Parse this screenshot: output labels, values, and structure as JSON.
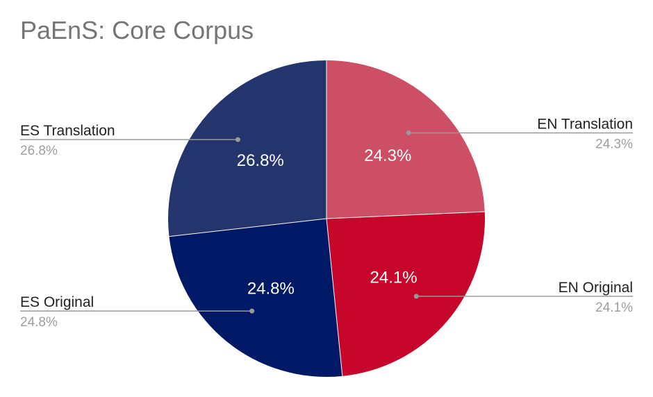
{
  "chart_data": {
    "type": "pie",
    "title": "PaEnS: Core Corpus",
    "slices": [
      {
        "label": "EN Translation",
        "value": 24.3,
        "display": "24.3%",
        "color": "#cc4f66"
      },
      {
        "label": "EN Original",
        "value": 24.1,
        "display": "24.1%",
        "color": "#c6062b"
      },
      {
        "label": "ES Original",
        "value": 24.8,
        "display": "24.8%",
        "color": "#001966"
      },
      {
        "label": "ES Translation",
        "value": 26.8,
        "display": "26.8%",
        "color": "#24356e"
      }
    ],
    "start_angle": "12 o'clock",
    "direction": "clockwise",
    "legend": "none",
    "leader_labels": "outside-left-right",
    "colors": {
      "title": "#757575",
      "label_text": "#212121",
      "label_value": "#9e9e9e",
      "slice_text": "#ffffff",
      "leader_line": "#999999"
    }
  }
}
